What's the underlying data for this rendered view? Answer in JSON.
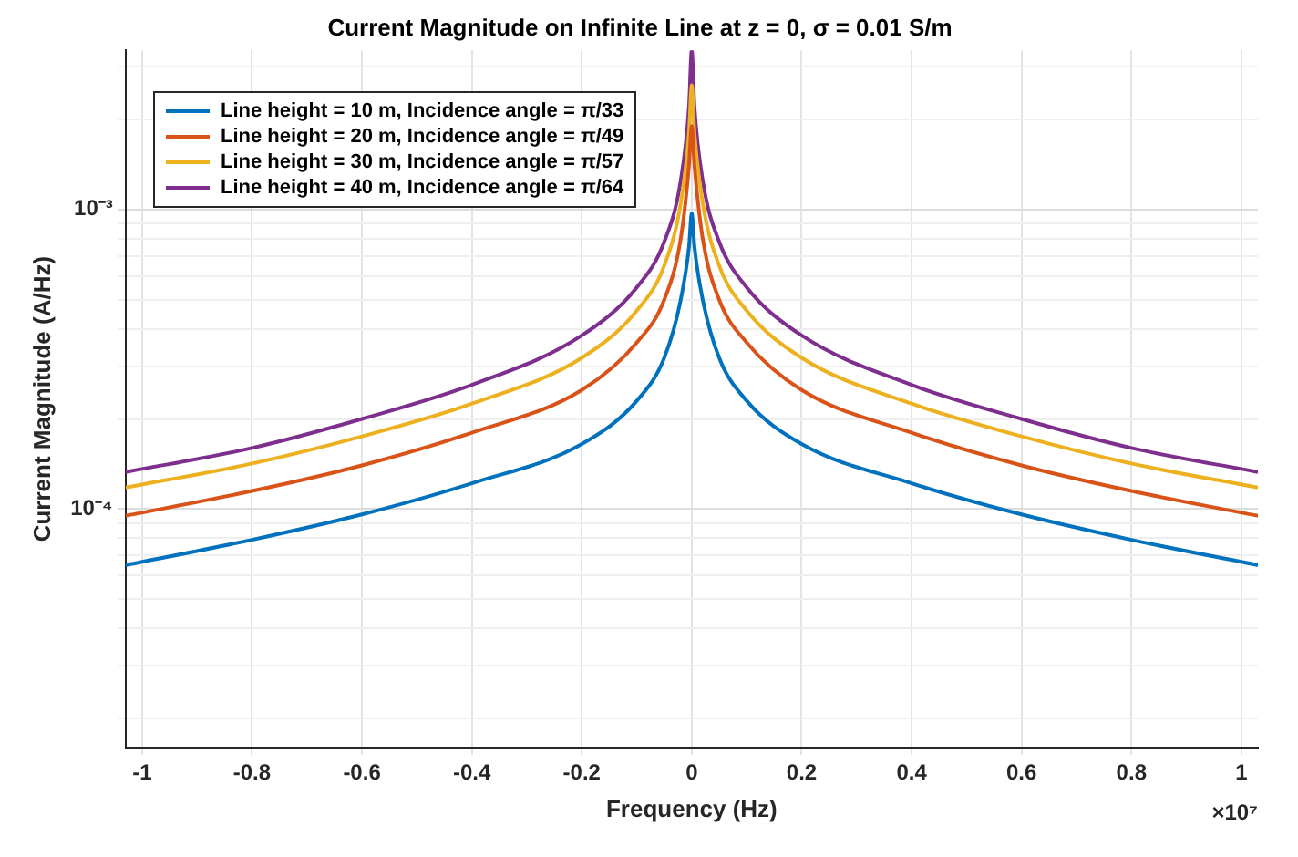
{
  "chart_data": {
    "type": "line",
    "title": "Current Magnitude on Infinite Line at z = 0, σ = 0.01 S/m",
    "xlabel": "Frequency (Hz)",
    "ylabel": "Current Magnitude (A/Hz)",
    "x": [
      -1.03,
      -0.8,
      -0.6,
      -0.4,
      -0.2,
      -0.1,
      -0.05,
      -0.02,
      -0.005,
      0,
      0.005,
      0.02,
      0.05,
      0.1,
      0.2,
      0.4,
      0.6,
      0.8,
      1.03
    ],
    "series": [
      {
        "name": "Line height = 10 m, Incidence angle = π/33",
        "color": "#0072bd",
        "values": [
          6.5e-05,
          7.9e-05,
          9.6e-05,
          0.000122,
          0.000165,
          0.00023,
          0.00032,
          0.0005,
          0.00075,
          0.00097,
          0.00075,
          0.0005,
          0.00032,
          0.00023,
          0.000165,
          0.000122,
          9.6e-05,
          7.9e-05,
          6.5e-05
        ]
      },
      {
        "name": "Line height = 20 m, Incidence angle = π/49",
        "color": "#d95319",
        "values": [
          9.5e-05,
          0.000115,
          0.00014,
          0.00018,
          0.00025,
          0.00036,
          0.0005,
          0.0008,
          0.0014,
          0.0019,
          0.0014,
          0.0008,
          0.0005,
          0.00036,
          0.00025,
          0.00018,
          0.00014,
          0.000115,
          9.5e-05
        ]
      },
      {
        "name": "Line height = 30 m, Incidence angle = π/57",
        "color": "#edb120",
        "values": [
          0.000118,
          0.000142,
          0.000175,
          0.000225,
          0.00032,
          0.00046,
          0.00065,
          0.00105,
          0.0018,
          0.0026,
          0.0018,
          0.00105,
          0.00065,
          0.00046,
          0.00032,
          0.000225,
          0.000175,
          0.000142,
          0.000118
        ]
      },
      {
        "name": "Line height = 40 m, Incidence angle = π/64",
        "color": "#7e2f8e",
        "values": [
          0.000133,
          0.00016,
          0.0002,
          0.00026,
          0.00038,
          0.00055,
          0.00078,
          0.00125,
          0.0022,
          0.0034,
          0.0022,
          0.00125,
          0.00078,
          0.00055,
          0.00038,
          0.00026,
          0.0002,
          0.00016,
          0.000133
        ]
      }
    ],
    "xlim": [
      -1.03,
      1.03
    ],
    "xticks": [
      -1,
      -0.8,
      -0.6,
      -0.4,
      -0.2,
      0,
      0.2,
      0.4,
      0.6,
      0.8,
      1
    ],
    "ylim": [
      1.6e-05,
      0.0034
    ],
    "yticks": [
      {
        "value": 2e-05,
        "label": null
      },
      {
        "value": 3e-05,
        "label": null
      },
      {
        "value": 4e-05,
        "label": null
      },
      {
        "value": 5e-05,
        "label": null
      },
      {
        "value": 6e-05,
        "label": null
      },
      {
        "value": 7e-05,
        "label": null
      },
      {
        "value": 8e-05,
        "label": null
      },
      {
        "value": 9e-05,
        "label": null
      },
      {
        "value": 0.0001,
        "label": "10⁻⁴"
      },
      {
        "value": 0.0002,
        "label": null
      },
      {
        "value": 0.0003,
        "label": null
      },
      {
        "value": 0.0004,
        "label": null
      },
      {
        "value": 0.0005,
        "label": null
      },
      {
        "value": 0.0006,
        "label": null
      },
      {
        "value": 0.0007,
        "label": null
      },
      {
        "value": 0.0008,
        "label": null
      },
      {
        "value": 0.0009,
        "label": null
      },
      {
        "value": 0.001,
        "label": "10⁻³"
      },
      {
        "value": 0.002,
        "label": null
      },
      {
        "value": 0.003,
        "label": null
      }
    ],
    "log": "y",
    "grid": true,
    "legend": "top left",
    "annotations": [
      "×10⁷"
    ]
  }
}
